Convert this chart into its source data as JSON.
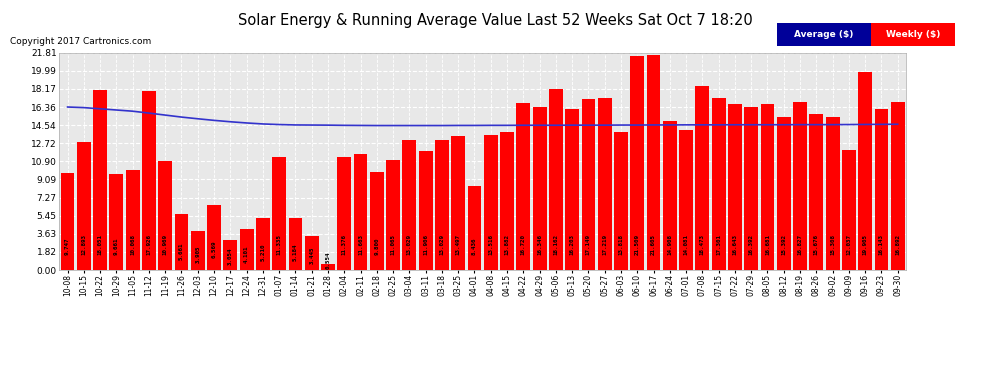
{
  "title": "Solar Energy & Running Average Value Last 52 Weeks Sat Oct 7 18:20",
  "copyright": "Copyright 2017 Cartronics.com",
  "bar_color": "#FF0000",
  "avg_line_color": "#3333CC",
  "background_color": "#FFFFFF",
  "plot_bg_color": "#E8E8E8",
  "grid_color": "#FFFFFF",
  "ylim": [
    0,
    21.81
  ],
  "yticks": [
    0.0,
    1.82,
    3.63,
    5.45,
    7.27,
    9.09,
    10.9,
    12.72,
    14.54,
    16.36,
    18.17,
    19.99,
    21.81
  ],
  "categories": [
    "10-08",
    "10-15",
    "10-22",
    "10-29",
    "11-05",
    "11-12",
    "11-19",
    "11-26",
    "12-03",
    "12-10",
    "12-17",
    "12-24",
    "12-31",
    "01-07",
    "01-14",
    "01-21",
    "01-28",
    "02-04",
    "02-11",
    "02-18",
    "02-25",
    "03-04",
    "03-11",
    "03-18",
    "03-25",
    "04-01",
    "04-08",
    "04-15",
    "04-22",
    "04-29",
    "05-06",
    "05-13",
    "05-20",
    "05-27",
    "06-03",
    "06-10",
    "06-17",
    "06-24",
    "07-01",
    "07-08",
    "07-15",
    "07-22",
    "07-29",
    "08-05",
    "08-12",
    "08-19",
    "08-26",
    "09-02",
    "09-09",
    "09-16",
    "09-23",
    "09-30"
  ],
  "weekly_values": [
    9.747,
    12.893,
    18.051,
    9.661,
    10.068,
    17.926,
    10.969,
    5.661,
    3.905,
    6.569,
    3.054,
    4.101,
    5.21,
    11.335,
    5.184,
    3.445,
    0.554,
    11.376,
    11.663,
    9.8,
    11.065,
    13.029,
    11.906,
    13.029,
    13.497,
    8.436,
    13.516,
    13.882,
    16.72,
    16.346,
    18.162,
    16.203,
    17.149,
    17.219,
    13.818,
    21.509,
    21.605,
    14.908,
    14.081,
    18.473,
    17.301,
    16.643,
    16.392,
    16.681,
    15.392,
    16.827,
    15.676,
    15.308,
    12.037,
    19.905,
    16.143,
    16.892
  ],
  "avg_values": [
    16.36,
    16.3,
    16.18,
    16.06,
    15.94,
    15.75,
    15.55,
    15.35,
    15.18,
    15.02,
    14.88,
    14.76,
    14.66,
    14.6,
    14.56,
    14.55,
    14.54,
    14.52,
    14.51,
    14.5,
    14.5,
    14.5,
    14.5,
    14.5,
    14.51,
    14.51,
    14.52,
    14.52,
    14.53,
    14.53,
    14.53,
    14.54,
    14.54,
    14.54,
    14.55,
    14.55,
    14.56,
    14.56,
    14.57,
    14.57,
    14.57,
    14.58,
    14.58,
    14.58,
    14.58,
    14.59,
    14.59,
    14.59,
    14.6,
    14.61,
    14.62,
    14.63
  ],
  "legend_avg_color": "#000099",
  "legend_avg_label": "Average ($)",
  "legend_weekly_color": "#FF0000",
  "legend_weekly_label": "Weekly ($)"
}
